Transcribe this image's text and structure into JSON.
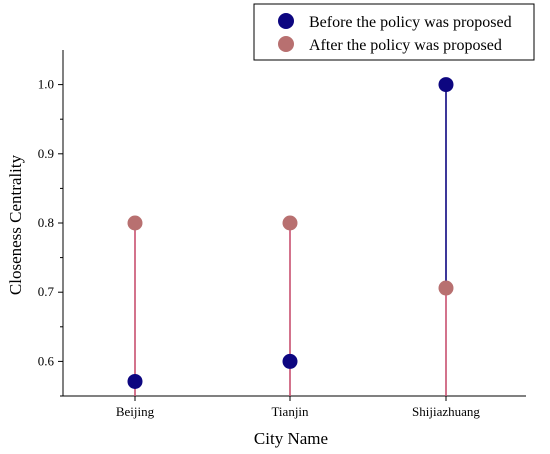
{
  "chart_data": {
    "type": "scatter",
    "categories": [
      "Beijing",
      "Tianjin",
      "Shijiazhuang"
    ],
    "series": [
      {
        "name": "Before the policy was proposed",
        "values": [
          0.571,
          0.6,
          1.0
        ],
        "color": "#0d0680"
      },
      {
        "name": "After the policy was proposed",
        "values": [
          0.8,
          0.8,
          0.706
        ],
        "color": "#b87070"
      }
    ],
    "stem_colors": {
      "before": "#0d0680",
      "after": "#c85070"
    },
    "xlabel": "City Name",
    "ylabel": "Closeness Centrality",
    "ylim": [
      0.55,
      1.05
    ],
    "yticks": [
      0.6,
      0.7,
      0.8,
      0.9,
      1.0
    ],
    "ytick_labels": [
      "0.6",
      "0.7",
      "0.8",
      "0.9",
      "1.0"
    ],
    "grid": false,
    "legend": "top-right"
  }
}
